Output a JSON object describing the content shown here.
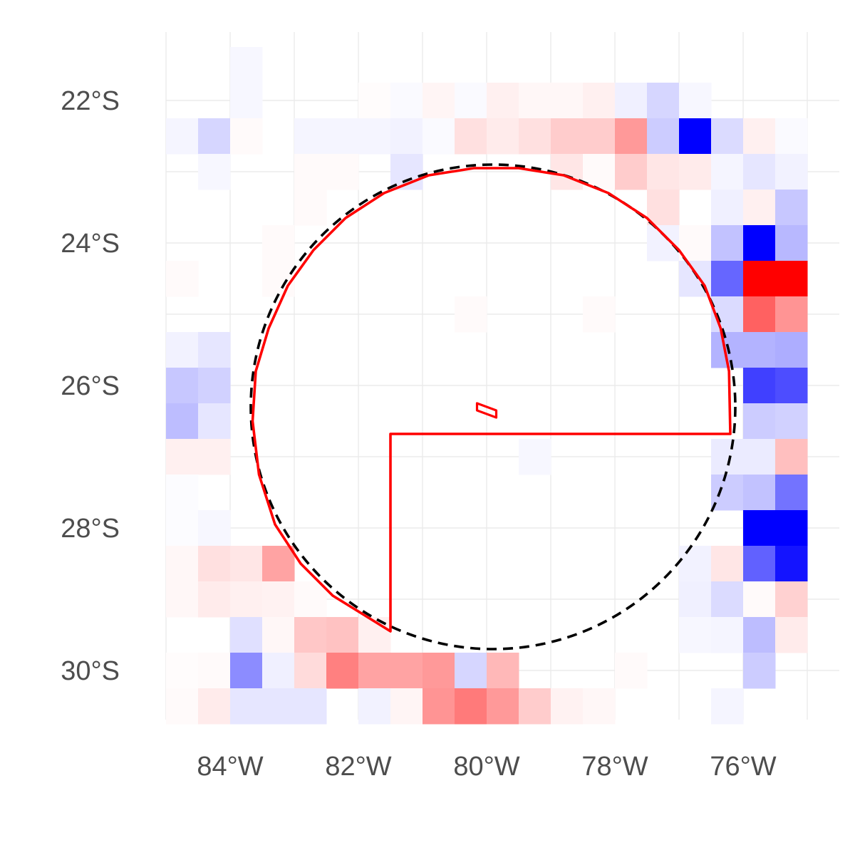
{
  "chart_data": {
    "type": "heatmap",
    "title": "",
    "xlabel": "",
    "ylabel": "",
    "grid": true,
    "xlim": [
      -85.0,
      -75.0
    ],
    "ylim": [
      -30.5,
      -21.0
    ],
    "cell_size_deg": 0.5,
    "x_ticks": [
      {
        "value": -84,
        "label": "84°W"
      },
      {
        "value": -82,
        "label": "82°W"
      },
      {
        "value": -80,
        "label": "80°W"
      },
      {
        "value": -78,
        "label": "78°W"
      },
      {
        "value": -76,
        "label": "76°W"
      }
    ],
    "y_ticks": [
      {
        "value": -22,
        "label": "22°S"
      },
      {
        "value": -24,
        "label": "24°S"
      },
      {
        "value": -26,
        "label": "26°S"
      },
      {
        "value": -28,
        "label": "28°S"
      },
      {
        "value": -30,
        "label": "30°S"
      }
    ],
    "colors": {
      "negative": "#ff0000",
      "positive": "#0000ff",
      "zero": "#ffffff",
      "outline": "#ff0000",
      "circle": "#000000"
    },
    "cells_note_rows": "rows from north (lat -21.5) to south (lat -30.5), columns from west (lon -85.0) to east (lon -75.0); values in [-1, 1], negative = red, positive = blue",
    "cells": [
      [
        0,
        0,
        0.03,
        0,
        0,
        0,
        0,
        0,
        0,
        0,
        0,
        0,
        0,
        0,
        0,
        0,
        0,
        0,
        0,
        0
      ],
      [
        0,
        0,
        0.03,
        0,
        0,
        0,
        -0.01,
        0.02,
        -0.04,
        0.02,
        -0.06,
        -0.03,
        -0.03,
        -0.06,
        0.06,
        0.16,
        0.03,
        0,
        0,
        0
      ],
      [
        0.04,
        0.16,
        -0.02,
        0,
        0.04,
        0.04,
        0.04,
        0.05,
        0.02,
        -0.12,
        -0.08,
        -0.12,
        -0.2,
        -0.2,
        -0.4,
        0.2,
        1.0,
        0.14,
        -0.06,
        0.02
      ],
      [
        0,
        0.03,
        0,
        0,
        -0.02,
        -0.02,
        0,
        0.1,
        0,
        0,
        0,
        0,
        -0.1,
        -0.02,
        -0.2,
        -0.1,
        -0.08,
        0.04,
        0.1,
        0.05
      ],
      [
        0,
        0,
        0,
        0,
        -0.02,
        0,
        0,
        0,
        0,
        0,
        0,
        0,
        0,
        0,
        0,
        -0.12,
        0,
        0.06,
        -0.06,
        0.22
      ],
      [
        0,
        0,
        0,
        -0.02,
        0,
        0,
        0,
        0,
        0,
        0,
        0,
        0,
        0,
        0,
        0,
        0.05,
        -0.02,
        0.24,
        1.0,
        0.28
      ],
      [
        -0.02,
        0,
        0,
        -0.02,
        0,
        0,
        0,
        0,
        0,
        0,
        0,
        0,
        0,
        0,
        0,
        0,
        0.1,
        0.6,
        -1.0,
        -1.0
      ],
      [
        0,
        0,
        0,
        0,
        0,
        0,
        0,
        0,
        0,
        -0.02,
        0,
        0,
        0,
        -0.02,
        0,
        0,
        0,
        0.14,
        -0.62,
        -0.42
      ],
      [
        0.05,
        0.1,
        0,
        0,
        0,
        0,
        0,
        0,
        0,
        0,
        0,
        0,
        0,
        0,
        0,
        0,
        0,
        0.3,
        0.3,
        0.32
      ],
      [
        0.22,
        0.18,
        0,
        0,
        0,
        0,
        0,
        0,
        0,
        0,
        0,
        0,
        0,
        0,
        0,
        0,
        0,
        0,
        0.75,
        0.7
      ],
      [
        0.26,
        0.1,
        0,
        0,
        0,
        0,
        0,
        0,
        0,
        0,
        0,
        0,
        0,
        0,
        0,
        0,
        0,
        0,
        0.2,
        0.18
      ],
      [
        -0.06,
        -0.06,
        0,
        0,
        0,
        0,
        0,
        0,
        0,
        0,
        0,
        0.03,
        0,
        0,
        0,
        0,
        0,
        0.08,
        0.08,
        -0.25
      ],
      [
        0.01,
        0,
        0,
        0,
        0,
        0,
        0,
        0,
        0,
        0,
        0,
        0,
        0,
        0,
        0,
        0,
        0,
        0.2,
        0.24,
        0.55
      ],
      [
        0.01,
        0.03,
        0,
        0,
        0,
        0,
        0,
        0,
        0,
        0,
        0,
        0,
        0,
        0,
        0,
        0,
        0,
        0,
        1.0,
        1.0
      ],
      [
        -0.03,
        -0.12,
        -0.1,
        -0.36,
        0,
        0,
        0,
        0,
        0,
        0,
        0,
        0,
        0,
        0,
        0,
        0,
        0.05,
        -0.1,
        0.62,
        0.92
      ],
      [
        -0.03,
        -0.08,
        -0.06,
        -0.05,
        -0.02,
        0,
        0,
        0,
        0,
        0,
        0,
        0,
        0,
        0,
        0,
        0,
        0.06,
        0.14,
        -0.02,
        -0.18
      ],
      [
        0,
        0,
        0.12,
        -0.03,
        -0.22,
        -0.24,
        -0.06,
        0,
        0,
        0,
        0,
        0,
        0,
        0,
        0,
        0,
        0.03,
        0.04,
        0.26,
        -0.08
      ],
      [
        -0.01,
        -0.02,
        0.45,
        0.06,
        -0.14,
        -0.5,
        -0.36,
        -0.36,
        -0.4,
        0.16,
        -0.28,
        0,
        0,
        0,
        -0.02,
        0,
        0,
        0,
        0.2,
        0
      ],
      [
        -0.02,
        -0.08,
        0.1,
        0.1,
        0.1,
        0,
        0.05,
        -0.04,
        -0.42,
        -0.52,
        -0.4,
        -0.2,
        -0.05,
        -0.03,
        0,
        0,
        0,
        0.04,
        0,
        0
      ]
    ],
    "circle": {
      "center_lon": -79.9,
      "center_lat": -26.3,
      "radius_deg": 3.4,
      "style": "dashed"
    },
    "outline_polygon": [
      [
        -81.5,
        -29.45
      ],
      [
        -81.5,
        -26.68
      ],
      [
        -76.2,
        -26.68
      ],
      [
        -76.22,
        -25.8
      ],
      [
        -76.35,
        -25.2
      ],
      [
        -76.6,
        -24.6
      ],
      [
        -77.0,
        -24.1
      ],
      [
        -77.5,
        -23.65
      ],
      [
        -78.1,
        -23.3
      ],
      [
        -78.8,
        -23.05
      ],
      [
        -79.5,
        -22.95
      ],
      [
        -80.2,
        -22.95
      ],
      [
        -80.9,
        -23.05
      ],
      [
        -81.6,
        -23.3
      ],
      [
        -82.2,
        -23.65
      ],
      [
        -82.7,
        -24.1
      ],
      [
        -83.1,
        -24.6
      ],
      [
        -83.4,
        -25.2
      ],
      [
        -83.6,
        -25.8
      ],
      [
        -83.65,
        -26.5
      ],
      [
        -83.55,
        -27.25
      ],
      [
        -83.3,
        -27.95
      ],
      [
        -82.9,
        -28.5
      ],
      [
        -82.4,
        -28.95
      ],
      [
        -81.5,
        -29.45
      ]
    ],
    "small_polygon": [
      [
        -80.15,
        -26.25
      ],
      [
        -79.85,
        -26.35
      ],
      [
        -79.85,
        -26.45
      ],
      [
        -80.15,
        -26.35
      ],
      [
        -80.15,
        -26.25
      ]
    ]
  }
}
